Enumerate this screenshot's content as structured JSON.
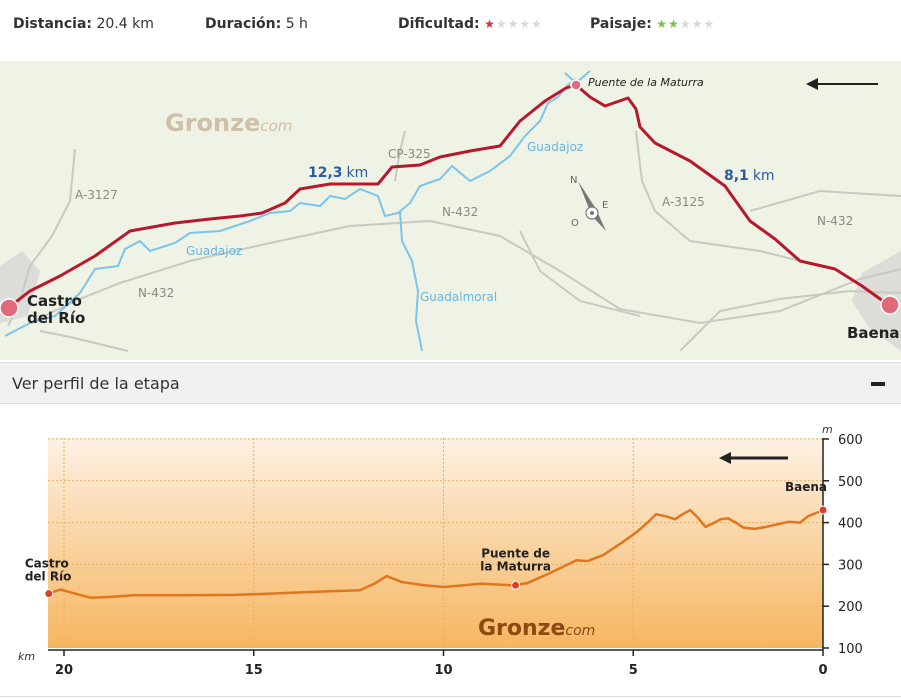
{
  "stats": {
    "distance_label": "Distancia:",
    "distance_value": "20.4 km",
    "duration_label": "Duración:",
    "duration_value": "5 h",
    "difficulty_label": "Dificultad:",
    "difficulty_rating": 1,
    "landscape_label": "Paisaje:",
    "landscape_rating": 2,
    "rating_max": 5,
    "difficulty_color": "#d0343a",
    "landscape_color": "#7cc040",
    "empty_star_color": "#d8d8d8"
  },
  "map": {
    "watermark_main": "Gronze",
    "watermark_sub": "com",
    "start_label_line1": "Castro",
    "start_label_line2": "del Río",
    "end_label": "Baena",
    "waypoint_label": "Puente de la Maturra",
    "segment1_value": "12,3",
    "segment1_unit": "km",
    "segment2_value": "8,1",
    "segment2_unit": "km",
    "roads": [
      "A-3127",
      "N-432",
      "CP-325",
      "N-432",
      "A-3125",
      "N-432"
    ],
    "rivers": [
      "Guadajoz",
      "Guadajoz",
      "Guadalmoral"
    ],
    "compass": {
      "n": "N",
      "o": "O",
      "e": "E"
    },
    "route_color": "#b8182c",
    "river_color": "#7cc4e8",
    "road_color": "#c9c9c2"
  },
  "profile": {
    "header_label": "Ver perfil de la etapa",
    "toggle_symbol": "minus"
  },
  "chart_data": {
    "type": "area",
    "xlabel": "km",
    "ylabel": "m",
    "x_reversed": true,
    "xlim": [
      20.4,
      0
    ],
    "ylim": [
      100,
      600
    ],
    "x_ticks": [
      20,
      15,
      10,
      5,
      0
    ],
    "y_ticks": [
      100,
      200,
      300,
      400,
      500,
      600
    ],
    "grid": true,
    "watermark_main": "Gronze",
    "watermark_sub": "com",
    "line_color": "#e2751f",
    "points": [
      [
        20.4,
        230
      ],
      [
        20.1,
        240
      ],
      [
        19.7,
        230
      ],
      [
        19.3,
        220
      ],
      [
        18.8,
        222
      ],
      [
        18.2,
        226
      ],
      [
        17.0,
        226
      ],
      [
        15.5,
        227
      ],
      [
        14.0,
        232
      ],
      [
        13.0,
        236
      ],
      [
        12.2,
        238
      ],
      [
        11.8,
        255
      ],
      [
        11.5,
        272
      ],
      [
        11.1,
        258
      ],
      [
        10.5,
        250
      ],
      [
        10.0,
        246
      ],
      [
        9.6,
        249
      ],
      [
        9.0,
        254
      ],
      [
        8.6,
        252
      ],
      [
        8.2,
        250
      ],
      [
        7.8,
        255
      ],
      [
        7.3,
        275
      ],
      [
        6.9,
        292
      ],
      [
        6.5,
        310
      ],
      [
        6.2,
        308
      ],
      [
        5.8,
        322
      ],
      [
        5.3,
        352
      ],
      [
        4.9,
        378
      ],
      [
        4.6,
        402
      ],
      [
        4.4,
        420
      ],
      [
        4.1,
        414
      ],
      [
        3.9,
        408
      ],
      [
        3.7,
        420
      ],
      [
        3.5,
        430
      ],
      [
        3.3,
        412
      ],
      [
        3.1,
        390
      ],
      [
        2.9,
        398
      ],
      [
        2.7,
        408
      ],
      [
        2.5,
        410
      ],
      [
        2.3,
        400
      ],
      [
        2.1,
        388
      ],
      [
        1.8,
        385
      ],
      [
        1.5,
        390
      ],
      [
        1.2,
        396
      ],
      [
        0.9,
        402
      ],
      [
        0.6,
        400
      ],
      [
        0.4,
        415
      ],
      [
        0.0,
        430
      ]
    ],
    "markers": [
      {
        "x": 20.4,
        "y": 230,
        "label_line1": "Castro",
        "label_line2": "del Río"
      },
      {
        "x": 8.1,
        "y": 250,
        "label_line1": "Puente de",
        "label_line2": "la Maturra"
      },
      {
        "x": 0.0,
        "y": 430,
        "label_line1": "Baena",
        "label_line2": ""
      }
    ],
    "marker_color": "#d8402a"
  }
}
